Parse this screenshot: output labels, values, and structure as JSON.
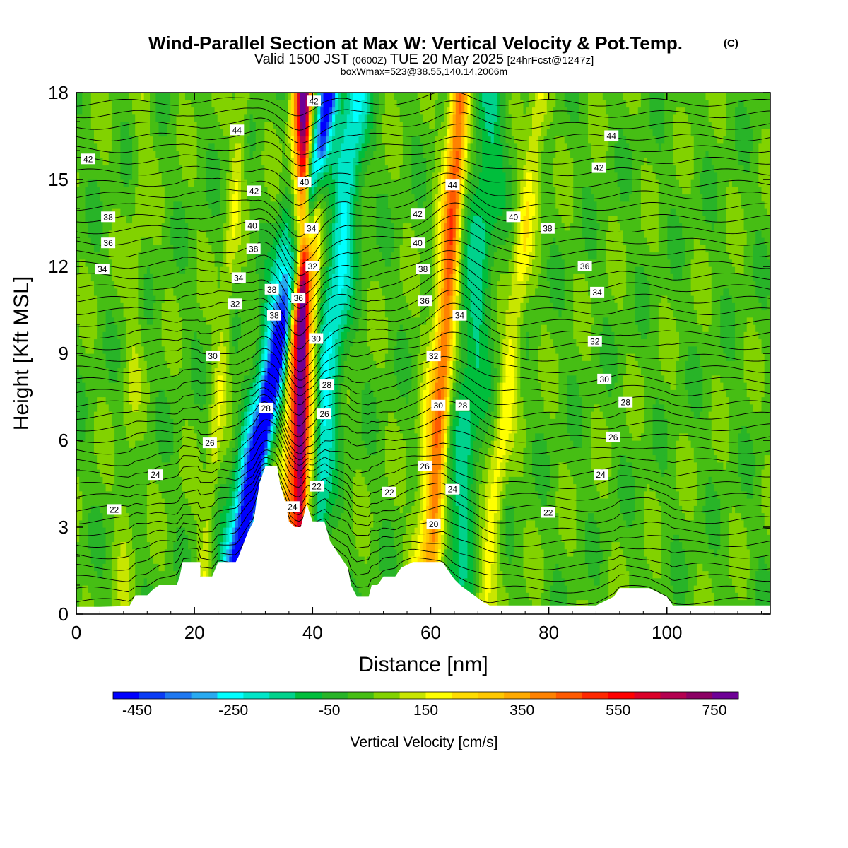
{
  "chart_data": {
    "type": "heatmap",
    "title": "Wind-Parallel Section at Max W: Vertical Velocity & Pot.Temp.",
    "title_mark": "(C)",
    "subtitle_main": "Valid 1500 JST",
    "subtitle_zulu": "(0600Z)",
    "subtitle_date": "TUE 20 May 2025",
    "subtitle_fcst": "[24hrFcst@1247z]",
    "subtitle2": "boxWmax=523@38.55,140.14,2006m",
    "xlabel": "Distance [nm]",
    "ylabel": "Height [Kft MSL]",
    "xlim": [
      0,
      117.5
    ],
    "ylim": [
      0,
      18
    ],
    "x_ticks": [
      "0",
      "20",
      "40",
      "60",
      "80",
      "100"
    ],
    "x_tick_values": [
      0,
      20,
      40,
      60,
      80,
      100
    ],
    "y_ticks": [
      "0",
      "3",
      "6",
      "9",
      "12",
      "15",
      "18"
    ],
    "y_tick_values": [
      0,
      3,
      6,
      9,
      12,
      15,
      18
    ],
    "colorbar": {
      "label": "Vertical Velocity [cm/s]",
      "range": [
        -500,
        800
      ],
      "tick_labels": [
        "-450",
        "-250",
        "-50",
        "150",
        "350",
        "550",
        "750"
      ],
      "tick_values": [
        -450,
        -250,
        -50,
        150,
        350,
        550,
        750
      ],
      "colors": [
        "#0000ff",
        "#0a3cf5",
        "#1e78f0",
        "#28aaf0",
        "#00ffff",
        "#00e6c8",
        "#00d28c",
        "#00be3c",
        "#28b428",
        "#46be14",
        "#82d200",
        "#c8e600",
        "#ffff00",
        "#ffdc00",
        "#ffc800",
        "#ffaa00",
        "#ff8200",
        "#ff5a00",
        "#ff2800",
        "#ff0000",
        "#dc0028",
        "#b40050",
        "#8c0064",
        "#6e0096"
      ]
    },
    "terrain_kft": [
      [
        0,
        0.25
      ],
      [
        4,
        0.25
      ],
      [
        9,
        0.28
      ],
      [
        10,
        0.65
      ],
      [
        11,
        0.65
      ],
      [
        12,
        0.65
      ],
      [
        13,
        0.85
      ],
      [
        14,
        1.0
      ],
      [
        17,
        1.0
      ],
      [
        17.5,
        1.3
      ],
      [
        18,
        1.8
      ],
      [
        21,
        1.8
      ],
      [
        21,
        1.3
      ],
      [
        22,
        1.3
      ],
      [
        23,
        1.3
      ],
      [
        24,
        1.8
      ],
      [
        27,
        1.8
      ],
      [
        27.5,
        2.0
      ],
      [
        29,
        2.8
      ],
      [
        30,
        3.2
      ],
      [
        31,
        4.5
      ],
      [
        32,
        5.1
      ],
      [
        34,
        5.1
      ],
      [
        34.5,
        4.5
      ],
      [
        35.5,
        3.8
      ],
      [
        36,
        3.2
      ],
      [
        37,
        3.0
      ],
      [
        38,
        3.0
      ],
      [
        39,
        3.8
      ],
      [
        40,
        3.2
      ],
      [
        42,
        3.2
      ],
      [
        43,
        2.5
      ],
      [
        44,
        2.2
      ],
      [
        46,
        1.6
      ],
      [
        46.5,
        1.0
      ],
      [
        47.5,
        0.6
      ],
      [
        49.5,
        0.6
      ],
      [
        50,
        1.0
      ],
      [
        51,
        1.0
      ],
      [
        52,
        1.3
      ],
      [
        54,
        1.3
      ],
      [
        55,
        1.6
      ],
      [
        57,
        1.8
      ],
      [
        62,
        1.8
      ],
      [
        63,
        1.5
      ],
      [
        64,
        1.2
      ],
      [
        65,
        1.0
      ],
      [
        67,
        0.7
      ],
      [
        69,
        0.4
      ],
      [
        70,
        0.3
      ],
      [
        88,
        0.3
      ],
      [
        91,
        0.6
      ],
      [
        92,
        0.9
      ],
      [
        97,
        0.9
      ],
      [
        100,
        0.6
      ],
      [
        101,
        0.3
      ],
      [
        117.5,
        0.3
      ]
    ],
    "w_bands": [
      {
        "x": 29.8,
        "dxdy": 0.9,
        "width": 2.2,
        "w": -250
      },
      {
        "x": 31.5,
        "dxdy": 0.95,
        "width": 1.6,
        "w": -450
      },
      {
        "x": 36.5,
        "dxdy": 0.1,
        "width": 1.4,
        "w": 350
      },
      {
        "x": 38.2,
        "dxdy": 0.05,
        "width": 1.2,
        "w": 700
      },
      {
        "x": 40.2,
        "dxdy": 0.05,
        "width": 0.9,
        "w": 200
      },
      {
        "x": 41.5,
        "dxdy": 0.5,
        "width": 2.5,
        "w": -250
      },
      {
        "x": 60.0,
        "dxdy": 0.4,
        "width": 2.0,
        "w": 150
      },
      {
        "x": 61.5,
        "dxdy": 0.3,
        "width": 1.5,
        "w": 300
      },
      {
        "x": 66.0,
        "dxdy": 0.35,
        "width": 2.8,
        "w": -150
      },
      {
        "x": 72.0,
        "dxdy": 0.55,
        "width": 1.6,
        "w": 150
      },
      {
        "x": 23.5,
        "dxdy": 0.4,
        "width": 1.2,
        "w": 100
      },
      {
        "x": 9.0,
        "dxdy": 0.2,
        "width": 1.5,
        "w": 50
      }
    ],
    "isentrope_labels": [
      {
        "text": "42",
        "x": 2.0,
        "y": 15.7
      },
      {
        "text": "38",
        "x": 5.4,
        "y": 13.7
      },
      {
        "text": "36",
        "x": 5.4,
        "y": 12.8
      },
      {
        "text": "34",
        "x": 4.4,
        "y": 11.9
      },
      {
        "text": "22",
        "x": 6.4,
        "y": 3.6
      },
      {
        "text": "24",
        "x": 13.4,
        "y": 4.8
      },
      {
        "text": "26",
        "x": 22.6,
        "y": 5.9
      },
      {
        "text": "30",
        "x": 23.1,
        "y": 8.9
      },
      {
        "text": "32",
        "x": 26.9,
        "y": 10.7
      },
      {
        "text": "34",
        "x": 27.5,
        "y": 11.6
      },
      {
        "text": "38",
        "x": 30.0,
        "y": 12.6
      },
      {
        "text": "40",
        "x": 29.8,
        "y": 13.4
      },
      {
        "text": "42",
        "x": 30.1,
        "y": 14.6
      },
      {
        "text": "44",
        "x": 27.2,
        "y": 16.7
      },
      {
        "text": "28",
        "x": 32.1,
        "y": 7.1
      },
      {
        "text": "38",
        "x": 33.1,
        "y": 11.2
      },
      {
        "text": "38",
        "x": 33.5,
        "y": 10.3
      },
      {
        "text": "24",
        "x": 36.6,
        "y": 3.7
      },
      {
        "text": "22",
        "x": 40.7,
        "y": 4.4
      },
      {
        "text": "36",
        "x": 37.6,
        "y": 10.9
      },
      {
        "text": "42",
        "x": 40.2,
        "y": 17.7
      },
      {
        "text": "40",
        "x": 38.6,
        "y": 14.9
      },
      {
        "text": "34",
        "x": 39.8,
        "y": 13.3
      },
      {
        "text": "32",
        "x": 40.0,
        "y": 12.0
      },
      {
        "text": "30",
        "x": 40.6,
        "y": 9.5
      },
      {
        "text": "28",
        "x": 42.4,
        "y": 7.9
      },
      {
        "text": "26",
        "x": 42.0,
        "y": 6.9
      },
      {
        "text": "22",
        "x": 53.0,
        "y": 4.2
      },
      {
        "text": "20",
        "x": 60.5,
        "y": 3.1
      },
      {
        "text": "26",
        "x": 59.0,
        "y": 5.1
      },
      {
        "text": "24",
        "x": 63.7,
        "y": 4.3
      },
      {
        "text": "30",
        "x": 61.3,
        "y": 7.2
      },
      {
        "text": "32",
        "x": 60.5,
        "y": 8.9
      },
      {
        "text": "36",
        "x": 59.0,
        "y": 10.8
      },
      {
        "text": "38",
        "x": 58.7,
        "y": 11.9
      },
      {
        "text": "40",
        "x": 57.8,
        "y": 12.8
      },
      {
        "text": "42",
        "x": 57.8,
        "y": 13.8
      },
      {
        "text": "44",
        "x": 63.7,
        "y": 14.8
      },
      {
        "text": "34",
        "x": 64.9,
        "y": 10.3
      },
      {
        "text": "28",
        "x": 65.4,
        "y": 7.2
      },
      {
        "text": "40",
        "x": 74.0,
        "y": 13.7
      },
      {
        "text": "38",
        "x": 79.8,
        "y": 13.3
      },
      {
        "text": "22",
        "x": 79.9,
        "y": 3.5
      },
      {
        "text": "36",
        "x": 86.1,
        "y": 12.0
      },
      {
        "text": "34",
        "x": 88.2,
        "y": 11.1
      },
      {
        "text": "32",
        "x": 87.8,
        "y": 9.4
      },
      {
        "text": "30",
        "x": 89.4,
        "y": 8.1
      },
      {
        "text": "28",
        "x": 93.0,
        "y": 7.3
      },
      {
        "text": "26",
        "x": 90.9,
        "y": 6.1
      },
      {
        "text": "24",
        "x": 88.8,
        "y": 4.8
      },
      {
        "text": "42",
        "x": 88.5,
        "y": 15.4
      },
      {
        "text": "44",
        "x": 90.6,
        "y": 16.5
      }
    ]
  }
}
